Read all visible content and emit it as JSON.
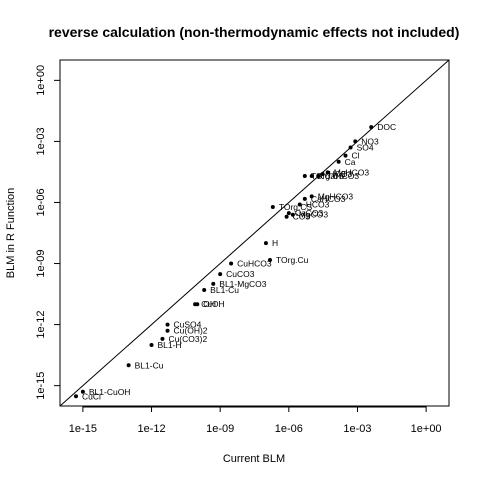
{
  "chart_data": {
    "type": "scatter",
    "title": "reverse calculation (non-thermodynamic effects not included)",
    "xlabel": "Current BLM",
    "ylabel": "BLM in R Function",
    "x_scale": "log10",
    "y_scale": "log10",
    "xlim": [
      1e-16,
      10.0
    ],
    "ylim": [
      1e-16,
      10.0
    ],
    "x_ticks": [
      {
        "value": 1e-15,
        "label": "1e-15"
      },
      {
        "value": 1e-12,
        "label": "1e-12"
      },
      {
        "value": 1e-09,
        "label": "1e-09"
      },
      {
        "value": 1e-06,
        "label": "1e-06"
      },
      {
        "value": 0.001,
        "label": "1e-03"
      },
      {
        "value": 1,
        "label": "1e+00"
      }
    ],
    "y_ticks": [
      {
        "value": 1e-15,
        "label": "1e-15"
      },
      {
        "value": 1e-12,
        "label": "1e-12"
      },
      {
        "value": 1e-09,
        "label": "1e-09"
      },
      {
        "value": 1e-06,
        "label": "1e-06"
      },
      {
        "value": 0.001,
        "label": "1e-03"
      },
      {
        "value": 1,
        "label": "1e+00"
      }
    ],
    "reference_line": "y = x",
    "grid": false,
    "points": [
      {
        "label": "DOC",
        "x": 0.004,
        "y": 0.005
      },
      {
        "label": "NO3",
        "x": 0.0008,
        "y": 0.001
      },
      {
        "label": "SO4",
        "x": 0.0005,
        "y": 0.0005
      },
      {
        "label": "Cl",
        "x": 0.0003,
        "y": 0.0002
      },
      {
        "label": "Ca",
        "x": 0.00015,
        "y": 0.0001
      },
      {
        "label": "MgHCO3",
        "x": 5e-05,
        "y": 3e-05
      },
      {
        "label": "HCO3",
        "x": 3e-05,
        "y": 2.5e-05
      },
      {
        "label": "CaHCO3",
        "x": 2e-05,
        "y": 2e-05
      },
      {
        "label": "K",
        "x": 1e-05,
        "y": 2e-05
      },
      {
        "label": "TOrg.CS",
        "x": 5e-06,
        "y": 2e-05
      },
      {
        "label": "MgHCO3",
        "x": 1e-05,
        "y": 2e-06
      },
      {
        "label": "CaHCO3",
        "x": 5e-06,
        "y": 1.5e-06
      },
      {
        "label": "HCO3",
        "x": 3e-06,
        "y": 8e-07
      },
      {
        "label": "TOrg.CS",
        "x": 2e-07,
        "y": 6e-07
      },
      {
        "label": "CaCO3",
        "x": 1e-06,
        "y": 3e-07
      },
      {
        "label": "MgCO3",
        "x": 1.5e-06,
        "y": 2.5e-07
      },
      {
        "label": "CO3",
        "x": 8e-07,
        "y": 2e-07
      },
      {
        "label": "H",
        "x": 1e-07,
        "y": 1e-08
      },
      {
        "label": "TOrg.Cu",
        "x": 1.5e-07,
        "y": 1.5e-09
      },
      {
        "label": "CuHCO3",
        "x": 3e-09,
        "y": 1e-09
      },
      {
        "label": "CuCO3",
        "x": 1e-09,
        "y": 3e-10
      },
      {
        "label": "BL1-MgCO3",
        "x": 5e-10,
        "y": 1e-10
      },
      {
        "label": "BL1-Cu",
        "x": 2e-10,
        "y": 5e-11
      },
      {
        "label": "CuOH",
        "x": 8e-11,
        "y": 1e-11
      },
      {
        "label": "OH",
        "x": 1e-10,
        "y": 1e-11
      },
      {
        "label": "CuSO4",
        "x": 5e-12,
        "y": 1e-12
      },
      {
        "label": "Cu(OH)2",
        "x": 5e-12,
        "y": 5e-13
      },
      {
        "label": "Cu(CO3)2",
        "x": 3e-12,
        "y": 2e-13
      },
      {
        "label": "BL1-H",
        "x": 1e-12,
        "y": 1e-13
      },
      {
        "label": "BL1-Cu",
        "x": 1e-13,
        "y": 1e-14
      },
      {
        "label": "BL1-CuOH",
        "x": 1e-15,
        "y": 5e-16
      },
      {
        "label": "CuCl",
        "x": 5e-16,
        "y": 3e-16
      }
    ]
  }
}
